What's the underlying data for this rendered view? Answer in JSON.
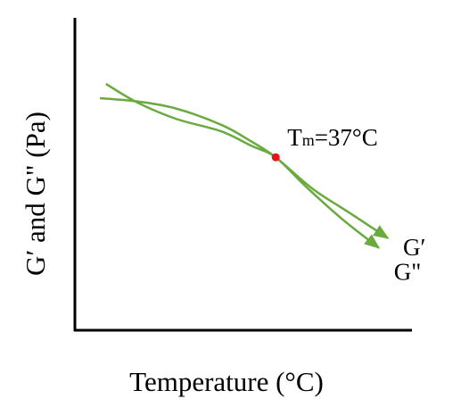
{
  "chart_data": {
    "type": "line",
    "xlabel": "Temperature (°C)",
    "ylabel": "G′ and G\" (Pa)",
    "axis_ticks": false,
    "grid": false,
    "xlim": [
      0,
      100
    ],
    "ylim": [
      0,
      100
    ],
    "series": [
      {
        "name": "G′",
        "color": "#6aaa3f",
        "x": [
          0,
          12,
          25,
          40,
          50,
          58,
          70,
          82,
          95
        ],
        "y": [
          75,
          73.9,
          71.4,
          65.7,
          59.8,
          54.3,
          43.4,
          35.1,
          26.0
        ]
      },
      {
        "name": "G\"",
        "color": "#6aaa3f",
        "x": [
          2,
          12,
          25,
          40,
          50,
          58,
          68,
          80,
          92
        ],
        "y": [
          80,
          73.7,
          67.8,
          63.4,
          58.3,
          54.3,
          44.0,
          32.6,
          22.6
        ]
      }
    ],
    "annotations": [
      {
        "label": "T",
        "subscript": "m",
        "suffix": "=37°C",
        "x": 58,
        "y": 54.3,
        "marker_color": "#e8141c"
      }
    ]
  }
}
